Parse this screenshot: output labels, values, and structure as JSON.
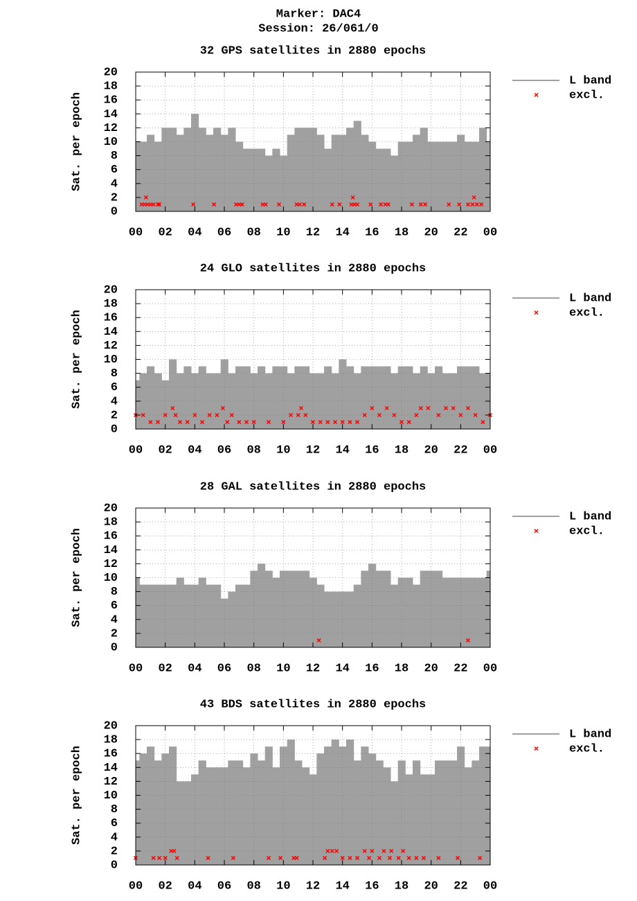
{
  "header": {
    "marker": "Marker: DAC4",
    "session": "Session: 26/061/0"
  },
  "chart_data": [
    {
      "type": "area",
      "title": "32 GPS satellites in 2880 epochs",
      "ylabel": "Sat. per epoch",
      "xlim": [
        0,
        24
      ],
      "ylim": [
        0,
        20
      ],
      "grid": true,
      "legend": "outside-right",
      "xticks": [
        {
          "value": 0,
          "label": "00"
        },
        {
          "value": 2,
          "label": "02"
        },
        {
          "value": 4,
          "label": "04"
        },
        {
          "value": 6,
          "label": "06"
        },
        {
          "value": 8,
          "label": "08"
        },
        10,
        12,
        14,
        16,
        18,
        20,
        22,
        {
          "value": 24,
          "label": "00"
        }
      ],
      "yticks": [
        0,
        2,
        4,
        6,
        8,
        10,
        12,
        14,
        16,
        18,
        20
      ],
      "series": [
        {
          "name": "L band",
          "type": "area",
          "color": "#a0a0a0",
          "x": [
            0,
            0.5,
            1,
            1.5,
            2,
            2.5,
            3,
            3.5,
            4,
            4.5,
            5,
            5.5,
            6,
            6.5,
            7,
            7.5,
            8,
            8.5,
            9,
            9.5,
            10,
            10.5,
            11,
            11.5,
            12,
            12.5,
            13,
            13.5,
            14,
            14.5,
            15,
            15.5,
            16,
            16.5,
            17,
            17.5,
            18,
            18.5,
            19,
            19.5,
            20,
            20.5,
            21,
            21.5,
            22,
            22.5,
            23,
            23.5,
            24
          ],
          "values": [
            10,
            10,
            11,
            10,
            12,
            12,
            11,
            12,
            14,
            12,
            11,
            12,
            11,
            12,
            10,
            9,
            9,
            9,
            8,
            9,
            8,
            11,
            12,
            12,
            12,
            11,
            9,
            11,
            11,
            12,
            13,
            11,
            10,
            9,
            9,
            8,
            10,
            10,
            11,
            12,
            10,
            10,
            10,
            10,
            11,
            10,
            10,
            12,
            10
          ]
        },
        {
          "name": "excl.",
          "type": "scatter",
          "color": "#ff0000",
          "x": [
            0.4,
            0.6,
            0.7,
            0.8,
            1.0,
            1.2,
            1.5,
            1.6,
            3.9,
            5.3,
            6.8,
            7.0,
            7.2,
            8.6,
            8.8,
            9.7,
            10.9,
            11.1,
            11.4,
            13.3,
            13.8,
            14.6,
            14.7,
            14.8,
            15.0,
            15.9,
            16.6,
            16.9,
            17.1,
            18.7,
            19.3,
            19.6,
            21.2,
            21.9,
            22.5,
            22.8,
            22.9,
            23.1,
            23.4
          ],
          "values": [
            1,
            1,
            2,
            1,
            1,
            1,
            1,
            1,
            1,
            1,
            1,
            1,
            1,
            1,
            1,
            1,
            1,
            1,
            1,
            1,
            1,
            1,
            2,
            1,
            1,
            1,
            1,
            1,
            1,
            1,
            1,
            1,
            1,
            1,
            1,
            1,
            2,
            1,
            1
          ]
        }
      ]
    },
    {
      "type": "area",
      "title": "24 GLO satellites in 2880 epochs",
      "ylabel": "Sat. per epoch",
      "xlim": [
        0,
        24
      ],
      "ylim": [
        0,
        20
      ],
      "grid": true,
      "legend": "outside-right",
      "xticks": [
        {
          "value": 0,
          "label": "00"
        },
        {
          "value": 2,
          "label": "02"
        },
        {
          "value": 4,
          "label": "04"
        },
        {
          "value": 6,
          "label": "06"
        },
        {
          "value": 8,
          "label": "08"
        },
        10,
        12,
        14,
        16,
        18,
        20,
        22,
        {
          "value": 24,
          "label": "00"
        }
      ],
      "yticks": [
        0,
        2,
        4,
        6,
        8,
        10,
        12,
        14,
        16,
        18,
        20
      ],
      "series": [
        {
          "name": "L band",
          "type": "area",
          "color": "#a0a0a0",
          "x": [
            0,
            0.5,
            1,
            1.5,
            2,
            2.5,
            3,
            3.5,
            4,
            4.5,
            5,
            5.5,
            6,
            6.5,
            7,
            7.5,
            8,
            8.5,
            9,
            9.5,
            10,
            10.5,
            11,
            11.5,
            12,
            12.5,
            13,
            13.5,
            14,
            14.5,
            15,
            15.5,
            16,
            16.5,
            17,
            17.5,
            18,
            18.5,
            19,
            19.5,
            20,
            20.5,
            21,
            21.5,
            22,
            22.5,
            23,
            23.5,
            24
          ],
          "values": [
            7,
            8,
            9,
            8,
            7,
            10,
            8,
            9,
            8,
            9,
            8,
            8,
            10,
            8,
            9,
            9,
            8,
            9,
            8,
            9,
            9,
            8,
            9,
            9,
            8,
            8,
            9,
            8,
            10,
            9,
            8,
            9,
            9,
            9,
            9,
            8,
            9,
            9,
            8,
            9,
            8,
            9,
            8,
            8,
            9,
            9,
            9,
            8,
            8
          ]
        },
        {
          "name": "excl.",
          "type": "scatter",
          "color": "#ff0000",
          "x": [
            0,
            0.5,
            1,
            1.5,
            2,
            2.5,
            2.7,
            3,
            3.5,
            4,
            4.5,
            5,
            5.5,
            5.9,
            6.2,
            6.5,
            7,
            7.5,
            8,
            9,
            10,
            10.5,
            11,
            11.2,
            11.5,
            12,
            12.5,
            13,
            13.5,
            14,
            14.5,
            15,
            15.5,
            16,
            16.5,
            17,
            17.5,
            18,
            18.5,
            19,
            19.3,
            19.8,
            20.5,
            21,
            21.5,
            22,
            22.5,
            23,
            23.5,
            24
          ],
          "values": [
            2,
            2,
            1,
            1,
            2,
            3,
            2,
            1,
            1,
            2,
            1,
            2,
            2,
            3,
            1,
            2,
            1,
            1,
            1,
            1,
            1,
            2,
            2,
            3,
            2,
            1,
            1,
            1,
            1,
            1,
            1,
            1,
            2,
            3,
            2,
            3,
            2,
            1,
            1,
            2,
            3,
            3,
            2,
            3,
            3,
            2,
            3,
            2,
            1,
            2
          ]
        }
      ]
    },
    {
      "type": "area",
      "title": "28 GAL satellites in 2880 epochs",
      "ylabel": "Sat. per epoch",
      "xlim": [
        0,
        24
      ],
      "ylim": [
        0,
        20
      ],
      "grid": true,
      "legend": "outside-right",
      "xticks": [
        {
          "value": 0,
          "label": "00"
        },
        {
          "value": 2,
          "label": "02"
        },
        {
          "value": 4,
          "label": "04"
        },
        {
          "value": 6,
          "label": "06"
        },
        {
          "value": 8,
          "label": "08"
        },
        10,
        12,
        14,
        16,
        18,
        20,
        22,
        {
          "value": 24,
          "label": "00"
        }
      ],
      "yticks": [
        0,
        2,
        4,
        6,
        8,
        10,
        12,
        14,
        16,
        18,
        20
      ],
      "series": [
        {
          "name": "L band",
          "type": "area",
          "color": "#a0a0a0",
          "x": [
            0,
            0.5,
            1,
            1.5,
            2,
            2.5,
            3,
            3.5,
            4,
            4.5,
            5,
            5.5,
            6,
            6.5,
            7,
            7.5,
            8,
            8.5,
            9,
            9.5,
            10,
            10.5,
            11,
            11.5,
            12,
            12.5,
            13,
            13.5,
            14,
            14.5,
            15,
            15.5,
            16,
            16.5,
            17,
            17.5,
            18,
            18.5,
            19,
            19.5,
            20,
            20.5,
            21,
            21.5,
            22,
            22.5,
            23,
            23.5,
            24
          ],
          "values": [
            10,
            9,
            9,
            9,
            9,
            9,
            10,
            9,
            9,
            10,
            9,
            9,
            7,
            8,
            9,
            9,
            11,
            12,
            11,
            10,
            11,
            11,
            11,
            11,
            10,
            9,
            8,
            8,
            8,
            8,
            9,
            11,
            12,
            11,
            11,
            9,
            10,
            10,
            9,
            11,
            11,
            11,
            10,
            10,
            10,
            10,
            10,
            10,
            11
          ]
        },
        {
          "name": "excl.",
          "type": "scatter",
          "color": "#ff0000",
          "x": [
            12.4,
            22.5
          ],
          "values": [
            1,
            1
          ]
        }
      ]
    },
    {
      "type": "area",
      "title": "43 BDS satellites in 2880 epochs",
      "ylabel": "Sat. per epoch",
      "xlim": [
        0,
        24
      ],
      "ylim": [
        0,
        20
      ],
      "grid": true,
      "legend": "outside-right",
      "xticks": [
        {
          "value": 0,
          "label": "00"
        },
        {
          "value": 2,
          "label": "02"
        },
        {
          "value": 4,
          "label": "04"
        },
        {
          "value": 6,
          "label": "06"
        },
        {
          "value": 8,
          "label": "08"
        },
        10,
        12,
        14,
        16,
        18,
        20,
        22,
        {
          "value": 24,
          "label": "00"
        }
      ],
      "yticks": [
        0,
        2,
        4,
        6,
        8,
        10,
        12,
        14,
        16,
        18,
        20
      ],
      "series": [
        {
          "name": "L band",
          "type": "area",
          "color": "#a0a0a0",
          "x": [
            0,
            0.5,
            1,
            1.5,
            2,
            2.5,
            3,
            3.5,
            4,
            4.5,
            5,
            5.5,
            6,
            6.5,
            7,
            7.5,
            8,
            8.5,
            9,
            9.5,
            10,
            10.5,
            11,
            11.5,
            12,
            12.5,
            13,
            13.5,
            14,
            14.5,
            15,
            15.5,
            16,
            16.5,
            17,
            17.5,
            18,
            18.5,
            19,
            19.5,
            20,
            20.5,
            21,
            21.5,
            22,
            22.5,
            23,
            23.5,
            24
          ],
          "values": [
            15,
            16,
            17,
            15,
            16,
            17,
            12,
            12,
            13,
            15,
            14,
            14,
            14,
            15,
            15,
            14,
            16,
            15,
            17,
            14,
            17,
            18,
            15,
            14,
            13,
            16,
            17,
            18,
            17,
            18,
            15,
            17,
            16,
            15,
            14,
            12,
            15,
            13,
            15,
            13,
            13,
            15,
            15,
            15,
            17,
            14,
            15,
            17,
            17
          ]
        },
        {
          "name": "excl.",
          "type": "scatter",
          "color": "#ff0000",
          "x": [
            0,
            1.2,
            1.6,
            2,
            2.4,
            2.6,
            2.8,
            4.9,
            6.6,
            9,
            9.8,
            10.7,
            10.9,
            12.8,
            13,
            13.3,
            13.6,
            14,
            14.5,
            15,
            15.5,
            15.8,
            16,
            16.5,
            16.8,
            17.2,
            17.3,
            17.8,
            18.1,
            18.5,
            19,
            19.5,
            20.5,
            21.8,
            23.3
          ],
          "values": [
            1,
            1,
            1,
            1,
            2,
            2,
            1,
            1,
            1,
            1,
            1,
            1,
            1,
            1,
            2,
            2,
            2,
            1,
            1,
            1,
            2,
            1,
            2,
            1,
            2,
            1,
            2,
            1,
            2,
            1,
            1,
            1,
            1,
            1,
            1
          ]
        }
      ]
    }
  ]
}
